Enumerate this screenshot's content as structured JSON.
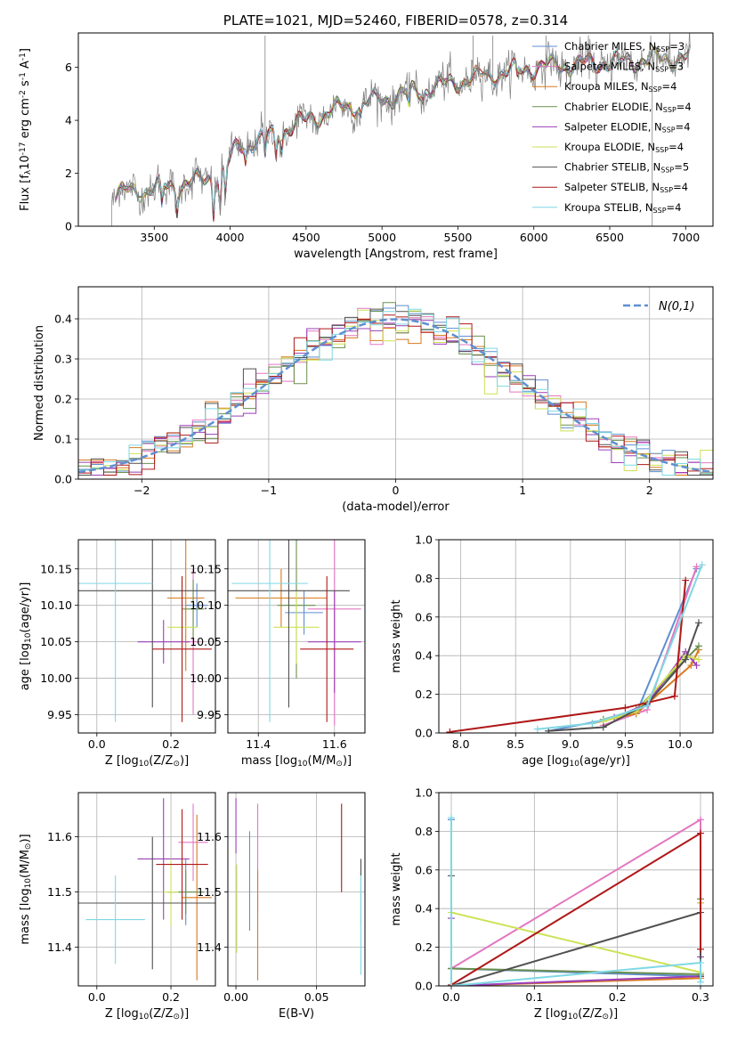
{
  "series_styles": [
    {
      "name": "Chabrier MILES, N$_{SSP}$=3",
      "color": "#5f8fd0"
    },
    {
      "name": "Salpeter MILES, N$_{SSP}$=3",
      "color": "#e377c2"
    },
    {
      "name": "Kroupa MILES, N$_{SSP}$=4",
      "color": "#d87a1e"
    },
    {
      "name": "Chabrier ELODIE, N$_{SSP}$=4",
      "color": "#6a8f4e"
    },
    {
      "name": "Salpeter ELODIE, N$_{SSP}$=4",
      "color": "#9b3fb8"
    },
    {
      "name": "Kroupa ELODIE, N$_{SSP}$=4",
      "color": "#cde254"
    },
    {
      "name": "Chabrier STELIB, N$_{SSP}$=5",
      "color": "#505050"
    },
    {
      "name": "Salpeter STELIB, N$_{SSP}$=4",
      "color": "#b01818"
    },
    {
      "name": "Kroupa STELIB, N$_{SSP}$=4",
      "color": "#7fd8e4"
    }
  ],
  "chart_data": [
    {
      "id": "spectrum",
      "type": "line",
      "title": "PLATE=1021, MJD=52460, FIBERID=0578, z=0.314",
      "xlabel": "wavelength [Angstrom, rest frame]",
      "ylabel": "Flux [f$_\\lambda$10$^{-17}$ erg cm$^{-2}$ s$^{-1}$ A$^{-1}$]",
      "xlim": [
        3000,
        7180
      ],
      "ylim": [
        0,
        7.3
      ],
      "xticks": [
        3500,
        4000,
        4500,
        5000,
        5500,
        6000,
        6500,
        7000
      ],
      "yticks": [
        0,
        2,
        4,
        6
      ],
      "grid": false,
      "legend": "upper-right",
      "data_color": "#808080",
      "x_start": 3220,
      "x_end": 7030,
      "x_step": 5,
      "continuum": [
        {
          "x": 3220,
          "y": 1.2
        },
        {
          "x": 3400,
          "y": 1.35
        },
        {
          "x": 3600,
          "y": 1.5
        },
        {
          "x": 3800,
          "y": 1.7
        },
        {
          "x": 3950,
          "y": 2.0
        },
        {
          "x": 4050,
          "y": 3.0
        },
        {
          "x": 4300,
          "y": 3.5
        },
        {
          "x": 4500,
          "y": 4.0
        },
        {
          "x": 4700,
          "y": 4.4
        },
        {
          "x": 5000,
          "y": 4.8
        },
        {
          "x": 5300,
          "y": 5.2
        },
        {
          "x": 5600,
          "y": 5.6
        },
        {
          "x": 6000,
          "y": 6.0
        },
        {
          "x": 6500,
          "y": 6.2
        },
        {
          "x": 7030,
          "y": 6.4
        }
      ],
      "absorption": [
        {
          "x": 3550,
          "depth": 0.9
        },
        {
          "x": 3650,
          "depth": 0.8
        },
        {
          "x": 3890,
          "depth": 1.3
        },
        {
          "x": 3934,
          "depth": 1.4
        },
        {
          "x": 3968,
          "depth": 1.2
        },
        {
          "x": 4102,
          "depth": 0.6
        },
        {
          "x": 4230,
          "depth": 0.8
        },
        {
          "x": 4300,
          "depth": 0.9
        },
        {
          "x": 4340,
          "depth": 0.6
        },
        {
          "x": 4861,
          "depth": 0.5
        },
        {
          "x": 5175,
          "depth": 0.6
        },
        {
          "x": 5270,
          "depth": 0.3
        },
        {
          "x": 5890,
          "depth": 0.4
        },
        {
          "x": 6563,
          "depth": 0.3
        }
      ],
      "spikes": [
        {
          "x": 4230,
          "y": 7.2
        },
        {
          "x": 5600,
          "y": 7.2
        },
        {
          "x": 5730,
          "y": 7.2
        },
        {
          "x": 6080,
          "y": 7.2
        },
        {
          "x": 6780,
          "y": 0.0
        },
        {
          "x": 6770,
          "y": 7.2
        }
      ]
    },
    {
      "id": "residuals",
      "type": "histogram",
      "xlabel": "(data-model)/error",
      "ylabel": "Normed distribution",
      "xlim": [
        -2.5,
        2.5
      ],
      "ylim": [
        0,
        0.48
      ],
      "xticks": [
        -2,
        -1,
        0,
        1,
        2
      ],
      "yticks": [
        0,
        0.1,
        0.2,
        0.3,
        0.4
      ],
      "grid": true,
      "legend": "upper-right",
      "reference_name": "$\\mathcal{N}(0,1)$",
      "reference_color": "#5f8fd0",
      "bin_width": 0.1,
      "bin_start": -2.5
    },
    {
      "id": "age-vs-Z",
      "type": "errorbar",
      "xlabel": "Z [log$_{10}$(Z/Z$_\\odot$)]",
      "ylabel": "age  [log$_{10}$(age/yr)]",
      "xlim": [
        -0.05,
        0.32
      ],
      "ylim": [
        9.925,
        10.19
      ],
      "xticks": [
        0.0,
        0.2
      ],
      "yticks": [
        9.95,
        10.0,
        10.05,
        10.1,
        10.15
      ],
      "grid": true,
      "points": [
        {
          "series": 0,
          "x": 0.27,
          "y": 10.1,
          "xerr": 0.03,
          "yerr": 0.03
        },
        {
          "series": 1,
          "x": 0.26,
          "y": 10.05,
          "xerr": 0.02,
          "yerr": 0.1
        },
        {
          "series": 2,
          "x": 0.24,
          "y": 10.11,
          "xerr": 0.05,
          "yerr": 0.1
        },
        {
          "series": 3,
          "x": 0.26,
          "y": 10.095,
          "xerr": 0.03,
          "yerr": 0.04
        },
        {
          "series": 4,
          "x": 0.18,
          "y": 10.05,
          "xerr": 0.07,
          "yerr": 0.03
        },
        {
          "series": 5,
          "x": 0.23,
          "y": 10.07,
          "xerr": 0.04,
          "yerr": 0.07
        },
        {
          "series": 6,
          "x": 0.15,
          "y": 10.12,
          "xerr": 0.2,
          "yerr": 0.16
        },
        {
          "series": 7,
          "x": 0.23,
          "y": 10.04,
          "xerr": 0.08,
          "yerr": 0.1
        },
        {
          "series": 8,
          "x": 0.05,
          "y": 10.13,
          "xerr": 0.1,
          "yerr": 0.19
        }
      ]
    },
    {
      "id": "age-vs-mass",
      "type": "errorbar",
      "xlabel": "mass [log$_{10}$(M/M$_\\odot$)]",
      "ylabel": "",
      "xlim": [
        11.32,
        11.68
      ],
      "ylim": [
        9.925,
        10.19
      ],
      "xticks": [
        11.4,
        11.6
      ],
      "yticks": [
        9.95,
        10.0,
        10.05,
        10.1,
        10.15
      ],
      "grid": true,
      "points": [
        {
          "series": 0,
          "x": 11.52,
          "y": 10.09,
          "xerr": 0.05,
          "yerr": 0.03
        },
        {
          "series": 1,
          "x": 11.6,
          "y": 10.095,
          "xerr": 0.07,
          "yerr": 0.16
        },
        {
          "series": 2,
          "x": 11.46,
          "y": 10.11,
          "xerr": 0.12,
          "yerr": 0.04
        },
        {
          "series": 3,
          "x": 11.5,
          "y": 10.1,
          "xerr": 0.05,
          "yerr": 0.1
        },
        {
          "series": 4,
          "x": 11.6,
          "y": 10.05,
          "xerr": 0.07,
          "yerr": 0.07
        },
        {
          "series": 5,
          "x": 11.5,
          "y": 10.07,
          "xerr": 0.06,
          "yerr": 0.05
        },
        {
          "series": 6,
          "x": 11.48,
          "y": 10.12,
          "xerr": 0.16,
          "yerr": 0.16
        },
        {
          "series": 7,
          "x": 11.58,
          "y": 10.04,
          "xerr": 0.07,
          "yerr": 0.1
        },
        {
          "series": 8,
          "x": 11.43,
          "y": 10.13,
          "xerr": 0.1,
          "yerr": 0.19
        }
      ]
    },
    {
      "id": "mass-weight-vs-age",
      "type": "line",
      "xlabel": "age  [log$_{10}$(age/yr)]",
      "ylabel": "mass weight",
      "xlim": [
        7.8,
        10.3
      ],
      "ylim": [
        0,
        1
      ],
      "xticks": [
        8.0,
        8.5,
        9.0,
        9.5,
        10.0
      ],
      "yticks": [
        0.0,
        0.2,
        0.4,
        0.6,
        0.8,
        1.0
      ],
      "grid": true,
      "series": [
        {
          "series": 0,
          "x": [
            8.8,
            9.6,
            10.15
          ],
          "y": [
            0.01,
            0.1,
            0.85
          ]
        },
        {
          "series": 1,
          "x": [
            9.3,
            9.7,
            10.15
          ],
          "y": [
            0.04,
            0.12,
            0.86
          ]
        },
        {
          "series": 2,
          "x": [
            9.2,
            9.6,
            10.1,
            10.17
          ],
          "y": [
            0.05,
            0.1,
            0.35,
            0.43
          ]
        },
        {
          "series": 3,
          "x": [
            9.3,
            9.6,
            10.05,
            10.17
          ],
          "y": [
            0.07,
            0.12,
            0.38,
            0.45
          ]
        },
        {
          "series": 4,
          "x": [
            9.4,
            9.7,
            10.05,
            10.15
          ],
          "y": [
            0.08,
            0.15,
            0.42,
            0.35
          ]
        },
        {
          "series": 5,
          "x": [
            9.3,
            9.6,
            10.05,
            10.17
          ],
          "y": [
            0.06,
            0.11,
            0.4,
            0.38
          ]
        },
        {
          "series": 6,
          "x": [
            8.8,
            9.3,
            9.7,
            10.05,
            10.17
          ],
          "y": [
            0.01,
            0.03,
            0.15,
            0.38,
            0.57
          ]
        },
        {
          "series": 7,
          "x": [
            7.9,
            9.5,
            9.95,
            10.05
          ],
          "y": [
            0.005,
            0.13,
            0.19,
            0.79
          ]
        },
        {
          "series": 8,
          "x": [
            8.7,
            9.2,
            9.7,
            10.2
          ],
          "y": [
            0.02,
            0.05,
            0.14,
            0.87
          ]
        }
      ]
    },
    {
      "id": "mass-vs-Z",
      "type": "errorbar",
      "xlabel": "Z [log$_{10}$(Z/Z$_\\odot$)]",
      "ylabel": "mass [log$_{10}$(M/M$_\\odot$)]",
      "xlim": [
        -0.05,
        0.32
      ],
      "ylim": [
        11.33,
        11.68
      ],
      "xticks": [
        0.0,
        0.2
      ],
      "yticks": [
        11.4,
        11.5,
        11.6
      ],
      "grid": true,
      "points": [
        {
          "series": 0,
          "x": 0.24,
          "y": 11.5,
          "xerr": 0.05,
          "yerr": 0.06
        },
        {
          "series": 1,
          "x": 0.26,
          "y": 11.59,
          "xerr": 0.04,
          "yerr": 0.07
        },
        {
          "series": 2,
          "x": 0.27,
          "y": 11.49,
          "xerr": 0.04,
          "yerr": 0.15
        },
        {
          "series": 3,
          "x": 0.24,
          "y": 11.5,
          "xerr": 0.05,
          "yerr": 0.04
        },
        {
          "series": 4,
          "x": 0.18,
          "y": 11.56,
          "xerr": 0.07,
          "yerr": 0.11
        },
        {
          "series": 5,
          "x": 0.2,
          "y": 11.5,
          "xerr": 0.02,
          "yerr": 0.06
        },
        {
          "series": 6,
          "x": 0.15,
          "y": 11.48,
          "xerr": 0.2,
          "yerr": 0.12
        },
        {
          "series": 7,
          "x": 0.23,
          "y": 11.55,
          "xerr": 0.07,
          "yerr": 0.1
        },
        {
          "series": 8,
          "x": 0.05,
          "y": 11.45,
          "xerr": 0.08,
          "yerr": 0.08
        }
      ]
    },
    {
      "id": "mass-vs-EBV",
      "type": "errorbar",
      "xlabel": "E(B-V)",
      "ylabel": "",
      "xlim": [
        -0.005,
        0.08
      ],
      "ylim": [
        11.33,
        11.68
      ],
      "xticks": [
        0.0,
        0.05
      ],
      "yticks": [
        11.4,
        11.5,
        11.6
      ],
      "grid": true,
      "points": [
        {
          "series": 0,
          "x": 0.0085,
          "y": 11.52,
          "xerr": 0,
          "yerr": 0.09
        },
        {
          "series": 1,
          "x": 0.0135,
          "y": 11.56,
          "xerr": 0,
          "yerr": 0.1
        },
        {
          "series": 2,
          "x": 0.0135,
          "y": 11.44,
          "xerr": 0,
          "yerr": 0.1
        },
        {
          "series": 4,
          "x": 0.0,
          "y": 11.62,
          "xerr": 0,
          "yerr": 0.05
        },
        {
          "series": 5,
          "x": 0.0005,
          "y": 11.47,
          "xerr": 0,
          "yerr": 0.08
        },
        {
          "series": 6,
          "x": 0.0775,
          "y": 11.5,
          "xerr": 0,
          "yerr": 0.06
        },
        {
          "series": 7,
          "x": 0.0655,
          "y": 11.58,
          "xerr": 0,
          "yerr": 0.08
        },
        {
          "series": 8,
          "x": 0.0775,
          "y": 11.44,
          "xerr": 0,
          "yerr": 0.09
        }
      ]
    },
    {
      "id": "mass-weight-vs-Z",
      "type": "line",
      "xlabel": "Z [log$_{10}$(Z/Z$_\\odot$)]",
      "ylabel": "mass weight",
      "xlim": [
        -0.015,
        0.315
      ],
      "ylim": [
        0,
        1
      ],
      "xticks": [
        0.0,
        0.1,
        0.2,
        0.3
      ],
      "yticks": [
        0.0,
        0.2,
        0.4,
        0.6,
        0.8,
        1.0
      ],
      "grid": true,
      "series": [
        {
          "series": 0,
          "x": [
            0.0,
            0.0,
            0.3,
            0.3
          ],
          "y": [
            0.86,
            0.09,
            0.05,
            0.43
          ]
        },
        {
          "series": 1,
          "x": [
            0.0,
            0.3,
            0.3
          ],
          "y": [
            0.09,
            0.86,
            0.05
          ]
        },
        {
          "series": 2,
          "x": [
            0.0,
            0.0,
            0.3,
            0.3
          ],
          "y": [
            0.09,
            0.0,
            0.04,
            0.43
          ]
        },
        {
          "series": 3,
          "x": [
            0.0,
            0.3,
            0.3
          ],
          "y": [
            0.09,
            0.06,
            0.45
          ]
        },
        {
          "series": 4,
          "x": [
            0.0,
            0.0,
            0.3,
            0.3
          ],
          "y": [
            0.35,
            0.0,
            0.05,
            0.15
          ]
        },
        {
          "series": 5,
          "x": [
            0.0,
            0.3,
            0.3
          ],
          "y": [
            0.38,
            0.07,
            0.43
          ]
        },
        {
          "series": 6,
          "x": [
            0.0,
            0.0,
            0.3,
            0.3
          ],
          "y": [
            0.57,
            0.0,
            0.38,
            0.05
          ]
        },
        {
          "series": 7,
          "x": [
            0.0,
            0.3,
            0.3
          ],
          "y": [
            0.005,
            0.79,
            0.19
          ]
        },
        {
          "series": 8,
          "x": [
            0.0,
            0.0,
            0.3,
            0.3
          ],
          "y": [
            0.87,
            0.0,
            0.12,
            0.02
          ]
        }
      ]
    }
  ]
}
